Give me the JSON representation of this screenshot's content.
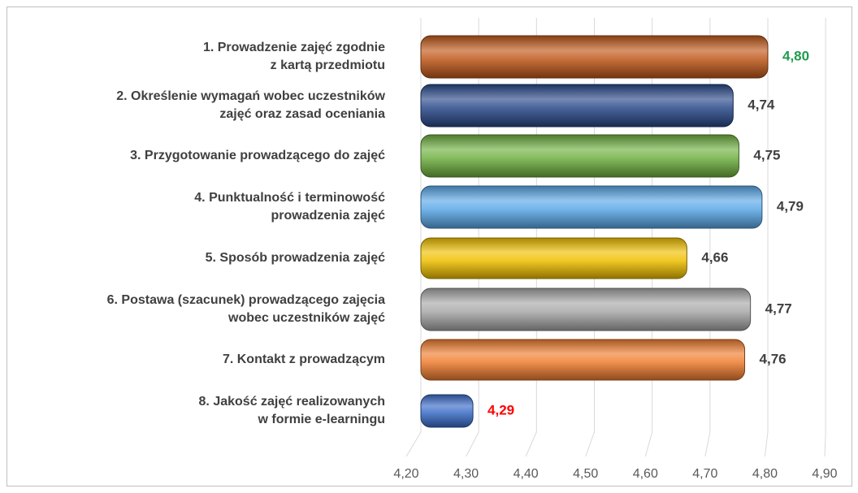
{
  "chart_data": {
    "type": "bar",
    "orientation": "horizontal",
    "categories": [
      [
        "1. Prowadzenie zajęć zgodnie",
        "z kartą przedmiotu"
      ],
      [
        "2. Określenie wymagań wobec uczestników",
        "zajęć oraz zasad oceniania"
      ],
      [
        "3. Przygotowanie prowadzącego do zajęć"
      ],
      [
        "4. Punktualność i terminowość",
        "prowadzenia zajęć"
      ],
      [
        "5. Sposób prowadzenia zajęć"
      ],
      [
        "6. Postawa (szacunek) prowadzącego zajęcia",
        "wobec uczestników zajęć"
      ],
      [
        "7. Kontakt z prowadzącym"
      ],
      [
        "8. Jakość zajęć realizowanych",
        "w formie e-learningu"
      ]
    ],
    "values": [
      4.8,
      4.74,
      4.75,
      4.79,
      4.66,
      4.77,
      4.76,
      4.29
    ],
    "value_labels": [
      "4,80",
      "4,74",
      "4,75",
      "4,79",
      "4,66",
      "4,77",
      "4,76",
      "4,29"
    ],
    "colors": [
      "#c0581a",
      "#2a4a8a",
      "#6fb040",
      "#5aa8e8",
      "#f0c000",
      "#a8a8a8",
      "#f07d30",
      "#3a6cc8"
    ],
    "value_label_colors": [
      "#1e9c4c",
      "#404040",
      "#404040",
      "#404040",
      "#404040",
      "#404040",
      "#404040",
      "#ff0000"
    ],
    "xlim": [
      4.2,
      4.9
    ],
    "xticks": [
      {
        "value": 4.2,
        "label": "4,20"
      },
      {
        "value": 4.3,
        "label": "4,30"
      },
      {
        "value": 4.4,
        "label": "4,40"
      },
      {
        "value": 4.5,
        "label": "4,50"
      },
      {
        "value": 4.6,
        "label": "4,60"
      },
      {
        "value": 4.7,
        "label": "4,70"
      },
      {
        "value": 4.8,
        "label": "4,80"
      },
      {
        "value": 4.9,
        "label": "4,90"
      }
    ],
    "grid": true
  }
}
